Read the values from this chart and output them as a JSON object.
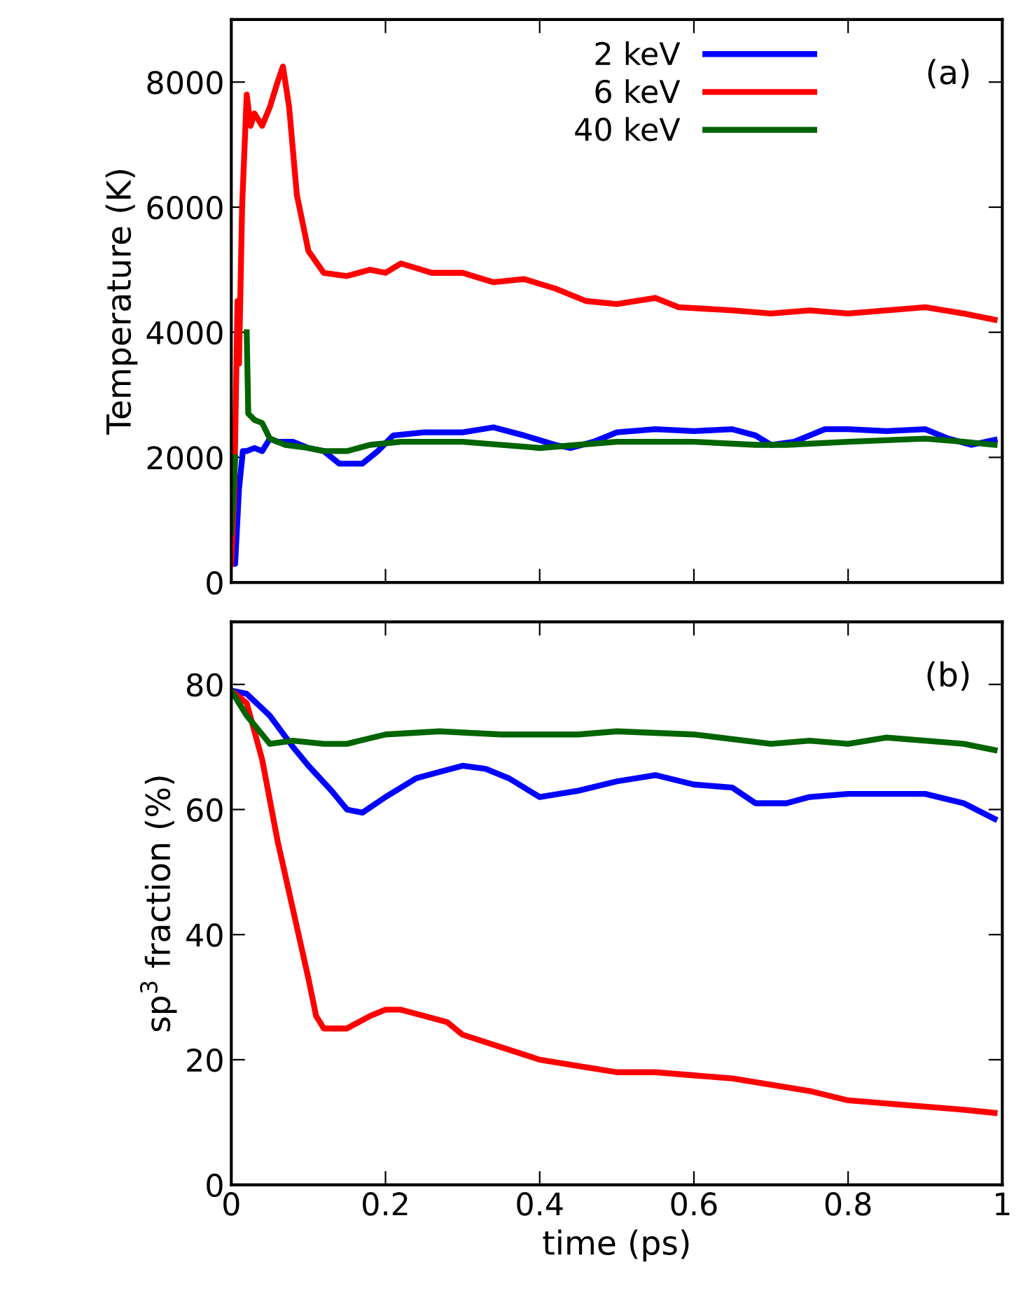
{
  "chart_data": [
    {
      "type": "line",
      "ylabel": "Temperature (K)",
      "xlim": [
        0,
        1
      ],
      "ylim": [
        0,
        9000
      ],
      "xticks": [
        0,
        0.2,
        0.4,
        0.6,
        0.8,
        1
      ],
      "yticks": [
        0,
        2000,
        4000,
        6000,
        8000
      ],
      "tick_labels": "y",
      "legend": "top",
      "annotations": [
        "(a)"
      ],
      "series": [
        {
          "name": "2 keV",
          "color": "#0000ff",
          "x": [
            0,
            0.005,
            0.01,
            0.015,
            0.02,
            0.03,
            0.04,
            0.05,
            0.06,
            0.08,
            0.1,
            0.12,
            0.14,
            0.17,
            0.19,
            0.21,
            0.25,
            0.3,
            0.34,
            0.38,
            0.42,
            0.44,
            0.47,
            0.5,
            0.55,
            0.6,
            0.65,
            0.68,
            0.7,
            0.73,
            0.77,
            0.8,
            0.85,
            0.9,
            0.93,
            0.96,
            0.99
          ],
          "values": [
            300,
            300,
            1500,
            2100,
            2100,
            2150,
            2100,
            2300,
            2250,
            2250,
            2150,
            2100,
            1900,
            1900,
            2100,
            2350,
            2400,
            2400,
            2480,
            2350,
            2200,
            2150,
            2250,
            2400,
            2450,
            2420,
            2450,
            2350,
            2200,
            2250,
            2450,
            2450,
            2420,
            2450,
            2300,
            2200,
            2280
          ]
        },
        {
          "name": "6 keV",
          "color": "#ff0000",
          "x": [
            0,
            0.004,
            0.008,
            0.01,
            0.014,
            0.02,
            0.025,
            0.03,
            0.04,
            0.05,
            0.06,
            0.067,
            0.075,
            0.085,
            0.1,
            0.12,
            0.15,
            0.18,
            0.2,
            0.22,
            0.26,
            0.3,
            0.34,
            0.38,
            0.42,
            0.46,
            0.5,
            0.55,
            0.58,
            0.65,
            0.7,
            0.75,
            0.8,
            0.85,
            0.9,
            0.95,
            0.99
          ],
          "values": [
            300,
            1500,
            4500,
            3500,
            6000,
            7800,
            7300,
            7500,
            7300,
            7600,
            8000,
            8250,
            7600,
            6200,
            5300,
            4950,
            4900,
            5000,
            4950,
            5100,
            4950,
            4950,
            4800,
            4850,
            4700,
            4500,
            4450,
            4550,
            4400,
            4350,
            4300,
            4350,
            4300,
            4350,
            4400,
            4300,
            4200
          ]
        },
        {
          "name": "40 keV",
          "color": "#006400",
          "x": [
            0,
            0.005,
            0.008,
            0.018,
            0.02,
            0.022,
            0.03,
            0.04,
            0.05,
            0.07,
            0.1,
            0.12,
            0.15,
            0.18,
            0.22,
            0.3,
            0.4,
            0.45,
            0.5,
            0.6,
            0.68,
            0.72,
            0.8,
            0.9,
            0.95,
            0.99
          ],
          "values": [
            800,
            2000,
            null,
            null,
            4000,
            2700,
            2600,
            2550,
            2300,
            2200,
            2150,
            2100,
            2100,
            2200,
            2250,
            2250,
            2150,
            2200,
            2250,
            2250,
            2200,
            2200,
            2250,
            2300,
            2250,
            2200
          ]
        }
      ]
    },
    {
      "type": "line",
      "xlabel": "time (ps)",
      "ylabel": "sp$^{3}$ fraction (%)",
      "xlim": [
        0,
        1
      ],
      "ylim": [
        0,
        90
      ],
      "xticks": [
        0,
        0.2,
        0.4,
        0.6,
        0.8,
        1
      ],
      "yticks": [
        0,
        20,
        40,
        60,
        80
      ],
      "annotations": [
        "(b)"
      ],
      "series": [
        {
          "color": "#0000ff",
          "x": [
            0,
            0.02,
            0.05,
            0.08,
            0.1,
            0.13,
            0.15,
            0.17,
            0.2,
            0.24,
            0.27,
            0.3,
            0.33,
            0.36,
            0.4,
            0.45,
            0.5,
            0.55,
            0.6,
            0.65,
            0.68,
            0.72,
            0.75,
            0.8,
            0.85,
            0.9,
            0.95,
            0.99
          ],
          "values": [
            79,
            78.5,
            75,
            70,
            67,
            63,
            60,
            59.5,
            62,
            65,
            66,
            67,
            66.5,
            65,
            62,
            63,
            64.5,
            65.5,
            64,
            63.5,
            61,
            61,
            62,
            62.5,
            62.5,
            62.5,
            61,
            58.5
          ]
        },
        {
          "color": "#ff0000",
          "x": [
            0,
            0.02,
            0.04,
            0.06,
            0.08,
            0.1,
            0.11,
            0.12,
            0.15,
            0.18,
            0.2,
            0.22,
            0.25,
            0.28,
            0.3,
            0.35,
            0.4,
            0.45,
            0.5,
            0.55,
            0.6,
            0.65,
            0.7,
            0.75,
            0.8,
            0.85,
            0.9,
            0.95,
            0.99
          ],
          "values": [
            79,
            77,
            68,
            55,
            44,
            33,
            27,
            25,
            25,
            27,
            28,
            28,
            27,
            26,
            24,
            22,
            20,
            19,
            18,
            18,
            17.5,
            17,
            16,
            15,
            13.5,
            13,
            12.5,
            12,
            11.5
          ]
        },
        {
          "color": "#006400",
          "x": [
            0,
            0.02,
            0.05,
            0.08,
            0.12,
            0.15,
            0.2,
            0.27,
            0.35,
            0.45,
            0.5,
            0.6,
            0.7,
            0.75,
            0.8,
            0.85,
            0.9,
            0.95,
            0.99
          ],
          "values": [
            79,
            75,
            70.5,
            71,
            70.5,
            70.5,
            72,
            72.5,
            72,
            72,
            72.5,
            72,
            70.5,
            71,
            70.5,
            71.5,
            71,
            70.5,
            69.5
          ]
        }
      ]
    }
  ]
}
